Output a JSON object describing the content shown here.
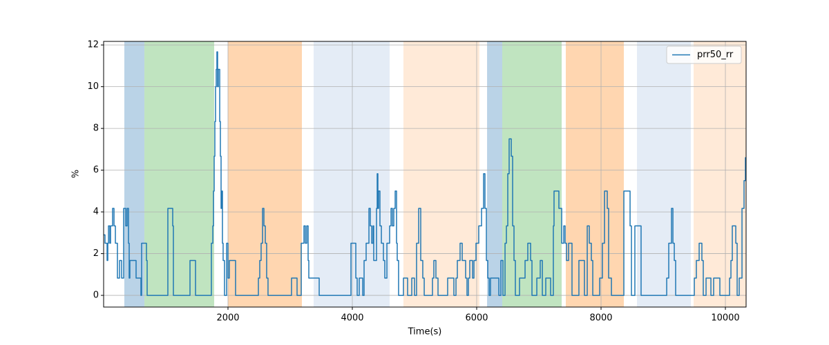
{
  "chart_data": {
    "type": "line",
    "drawstyle": "steps-post",
    "xlabel": "Time(s)",
    "ylabel": "%",
    "xlim": [
      0,
      10333
    ],
    "ylim": [
      -0.56,
      12.17
    ],
    "xticks": [
      2000,
      4000,
      6000,
      8000,
      10000
    ],
    "yticks": [
      0,
      2,
      4,
      6,
      8,
      10,
      12
    ],
    "grid": true,
    "legend": "upper right",
    "spans": [
      {
        "start": 333,
        "end": 656,
        "color": "#bad3e7"
      },
      {
        "start": 656,
        "end": 1778,
        "color": "#c0e4c0"
      },
      {
        "start": 2000,
        "end": 3189,
        "color": "#ffd6b0"
      },
      {
        "start": 3378,
        "end": 4600,
        "color": "#e4ecf6"
      },
      {
        "start": 4822,
        "end": 6044,
        "color": "#ffead8"
      },
      {
        "start": 6167,
        "end": 6411,
        "color": "#bad3e7"
      },
      {
        "start": 6411,
        "end": 7367,
        "color": "#c0e4c0"
      },
      {
        "start": 7433,
        "end": 8367,
        "color": "#ffd6b0"
      },
      {
        "start": 8578,
        "end": 9444,
        "color": "#e4ecf6"
      },
      {
        "start": 9489,
        "end": 10333,
        "color": "#ffead8"
      }
    ],
    "x": [
      0,
      22,
      56,
      67,
      78,
      100,
      111,
      144,
      167,
      189,
      222,
      256,
      289,
      322,
      356,
      378,
      400,
      411,
      422,
      522,
      600,
      611,
      689,
      700,
      1033,
      1111,
      1122,
      1389,
      1478,
      1733,
      1756,
      1767,
      1778,
      1789,
      1800,
      1811,
      1822,
      1833,
      1844,
      1867,
      1878,
      1889,
      1900,
      1911,
      1922,
      1944,
      1978,
      2000,
      2022,
      2122,
      2489,
      2511,
      2533,
      2556,
      2578,
      2600,
      2622,
      2644,
      3022,
      3111,
      3178,
      3222,
      3244,
      3267,
      3289,
      3300,
      3467,
      3978,
      4056,
      4078,
      4111,
      4167,
      4189,
      4222,
      4267,
      4289,
      4311,
      4333,
      4344,
      4389,
      4400,
      4411,
      4422,
      4444,
      4467,
      4500,
      4522,
      4556,
      4600,
      4622,
      4644,
      4667,
      4689,
      4711,
      4722,
      4744,
      4822,
      4889,
      4956,
      5000,
      5033,
      5067,
      5100,
      5133,
      5156,
      5289,
      5311,
      5344,
      5378,
      5533,
      5633,
      5667,
      5689,
      5733,
      5767,
      5822,
      5844,
      5867,
      5889,
      5933,
      5956,
      5989,
      6033,
      6078,
      6111,
      6133,
      6156,
      6178,
      6200,
      6222,
      6356,
      6389,
      6422,
      6456,
      6478,
      6500,
      6522,
      6556,
      6578,
      6600,
      6622,
      6689,
      6778,
      6822,
      6867,
      6889,
      6967,
      7022,
      7056,
      7111,
      7189,
      7233,
      7244,
      7322,
      7367,
      7400,
      7422,
      7444,
      7478,
      7533,
      7644,
      7733,
      7778,
      7811,
      7844,
      7867,
      7978,
      8022,
      8056,
      8100,
      8122,
      8167,
      8367,
      8467,
      8489,
      8544,
      8644,
      9056,
      9089,
      9133,
      9156,
      9178,
      9200,
      9500,
      9533,
      9578,
      9622,
      9644,
      9689,
      9767,
      9811,
      9911,
      10067,
      10089,
      10111,
      10167,
      10189,
      10222,
      10267,
      10300,
      10322,
      10333
    ],
    "series": [
      {
        "name": "prr50_rr",
        "color": "#1f77b4",
        "values": [
          2.9,
          2.5,
          1.67,
          2.5,
          3.33,
          2.5,
          3.33,
          4.17,
          3.33,
          2.5,
          0.83,
          1.67,
          0.83,
          4.17,
          3.33,
          4.17,
          2.5,
          0.83,
          1.67,
          0.83,
          0,
          2.5,
          1.67,
          0,
          4.17,
          3.33,
          0,
          1.67,
          0,
          2.5,
          3.33,
          5,
          6.67,
          8.33,
          10,
          10.83,
          11.67,
          10,
          10.83,
          8.33,
          6.67,
          4.17,
          5,
          2.5,
          1.67,
          0,
          2.5,
          0.83,
          1.67,
          0,
          0.83,
          1.67,
          2.5,
          4.17,
          3.33,
          2.5,
          0.83,
          0,
          0.83,
          0,
          2.5,
          3.33,
          2.5,
          3.33,
          1.67,
          0.83,
          0,
          2.5,
          0.83,
          0,
          0.83,
          0,
          1.67,
          2.5,
          4.17,
          3.33,
          2.5,
          3.33,
          1.67,
          4.17,
          5.83,
          4.17,
          5,
          3.33,
          2.5,
          1.67,
          0.83,
          2.5,
          3.33,
          4.17,
          3.33,
          4.17,
          5,
          2.5,
          1.67,
          0,
          0.83,
          0,
          0.83,
          0,
          2.5,
          4.17,
          1.67,
          0.83,
          0,
          0.83,
          1.67,
          0.83,
          0,
          0.83,
          0,
          0.83,
          1.67,
          2.5,
          1.67,
          0.83,
          0,
          0.83,
          1.67,
          0.83,
          1.67,
          2.5,
          3.33,
          4.17,
          5.83,
          4.17,
          1.67,
          0.83,
          0,
          0.83,
          0,
          1.67,
          0,
          2.5,
          3.33,
          5.83,
          7.5,
          6.67,
          3.33,
          1.67,
          0,
          0.83,
          1.67,
          2.5,
          1.67,
          0,
          0.83,
          1.67,
          0,
          0.83,
          0,
          3.33,
          5,
          4.17,
          2.5,
          3.33,
          2.5,
          1.67,
          2.5,
          0,
          1.67,
          0,
          3.33,
          2.5,
          1.67,
          0,
          0.83,
          2.5,
          5,
          4.17,
          0.83,
          0,
          5,
          3.33,
          0,
          3.33,
          0,
          0.83,
          2.5,
          4.17,
          2.5,
          1.67,
          0,
          0.83,
          1.67,
          2.5,
          1.67,
          0,
          0.83,
          0,
          0.83,
          0,
          0.83,
          1.67,
          3.33,
          2.5,
          0,
          0.83,
          4.17,
          5.5,
          6.6,
          6.6
        ]
      }
    ]
  }
}
